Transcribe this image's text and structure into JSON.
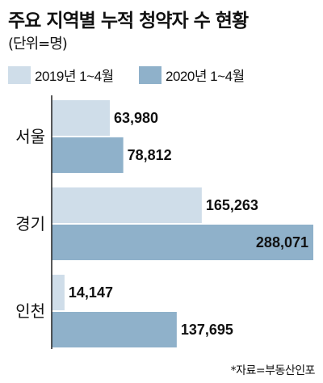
{
  "header": {
    "title": "주요 지역별 누적 청약자 수 현황",
    "subtitle": "(단위=명)"
  },
  "colors": {
    "series_2019": "#cfdde9",
    "series_2020": "#8fb1ca",
    "axis": "#222222"
  },
  "source": "*자료=부동산인포",
  "chart_data": {
    "type": "bar",
    "orientation": "horizontal",
    "categories": [
      "서울",
      "경기",
      "인천"
    ],
    "series": [
      {
        "name": "2019년 1~4월",
        "values": [
          63980,
          165263,
          14147
        ],
        "labels": [
          "63,980",
          "165,263",
          "14,147"
        ]
      },
      {
        "name": "2020년 1~4월",
        "values": [
          78812,
          288071,
          137695
        ],
        "labels": [
          "78,812",
          "288,071",
          "137,695"
        ]
      }
    ],
    "xlim": [
      0,
      288071
    ],
    "legend": "top",
    "grid": false
  }
}
